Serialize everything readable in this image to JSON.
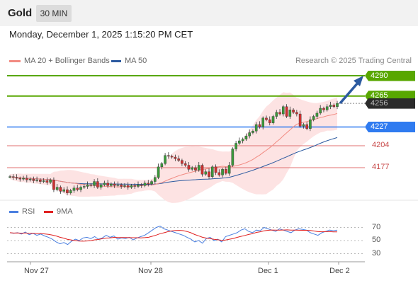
{
  "header": {
    "symbol": "Gold",
    "timeframe": "30 MIN"
  },
  "datetime": "Monday, December 1, 2025 1:15:20 PM CET",
  "legend_main": [
    {
      "label": "MA 20 + Bollinger Bands",
      "color": "#f28b82"
    },
    {
      "label": "MA 50",
      "color": "#2c5aa0"
    }
  ],
  "credit": "Research © 2025 Trading Central",
  "legend_rsi": [
    {
      "label": "RSI",
      "color": "#4a7fe0"
    },
    {
      "label": "9MA",
      "color": "#e02020"
    }
  ],
  "colors": {
    "green": "#58a700",
    "blue": "#2f7bf0",
    "red": "#e07070",
    "dark": "#2b2b2b",
    "candle_up": "#4caf50",
    "candle_down": "#e53935",
    "arrow": "#2c5aa0"
  },
  "chart_data": {
    "type": "candlestick",
    "price_axis": {
      "min": 4120,
      "max": 4300
    },
    "levels": [
      {
        "value": 4290,
        "label": "4290",
        "kind": "resistance"
      },
      {
        "value": 4265,
        "label": "4265",
        "kind": "resistance"
      },
      {
        "value": 4256,
        "label": "4256",
        "kind": "last_price"
      },
      {
        "value": 4227,
        "label": "4227",
        "kind": "pivot"
      },
      {
        "value": 4204,
        "label": "4204",
        "kind": "support"
      },
      {
        "value": 4177,
        "label": "4177",
        "kind": "support"
      }
    ],
    "x_ticks": [
      "Nov 27",
      "Nov 28",
      "Dec 1",
      "Dec 2"
    ],
    "closes": [
      4166,
      4165,
      4164,
      4163,
      4164,
      4162,
      4163,
      4161,
      4162,
      4160,
      4161,
      4159,
      4162,
      4150,
      4153,
      4148,
      4150,
      4146,
      4149,
      4152,
      4150,
      4153,
      4154,
      4156,
      4155,
      4160,
      4153,
      4156,
      4158,
      4155,
      4157,
      4155,
      4156,
      4154,
      4155,
      4153,
      4155,
      4154,
      4156,
      4155,
      4158,
      4157,
      4160,
      4165,
      4178,
      4182,
      4192,
      4191,
      4190,
      4188,
      4186,
      4182,
      4180,
      4175,
      4177,
      4174,
      4180,
      4169,
      4172,
      4166,
      4178,
      4171,
      4168,
      4175,
      4170,
      4180,
      4200,
      4207,
      4210,
      4212,
      4216,
      4220,
      4222,
      4230,
      4227,
      4238,
      4236,
      4232,
      4240,
      4245,
      4243,
      4252,
      4240,
      4248,
      4245,
      4243,
      4228,
      4230,
      4225,
      4236,
      4240,
      4244,
      4250,
      4248,
      4252,
      4254,
      4252,
      4256
    ],
    "rsi": {
      "levels": [
        70,
        50,
        30
      ],
      "values": [
        62,
        61,
        62,
        60,
        63,
        59,
        61,
        58,
        60,
        57,
        55,
        52,
        48,
        45,
        47,
        44,
        49,
        52,
        50,
        54,
        55,
        53,
        56,
        52,
        54,
        58,
        55,
        57,
        52,
        54,
        53,
        55,
        51,
        54,
        56,
        58,
        62,
        66,
        70,
        72,
        68,
        66,
        64,
        62,
        60,
        58,
        55,
        52,
        48,
        50,
        46,
        53,
        55,
        50,
        52,
        48,
        56,
        58,
        60,
        62,
        66,
        68,
        64,
        62,
        66,
        65,
        70,
        68,
        66,
        64,
        68,
        66,
        64,
        62,
        66,
        68,
        67,
        66,
        62,
        60,
        58,
        62,
        64,
        66,
        65,
        66
      ]
    }
  }
}
